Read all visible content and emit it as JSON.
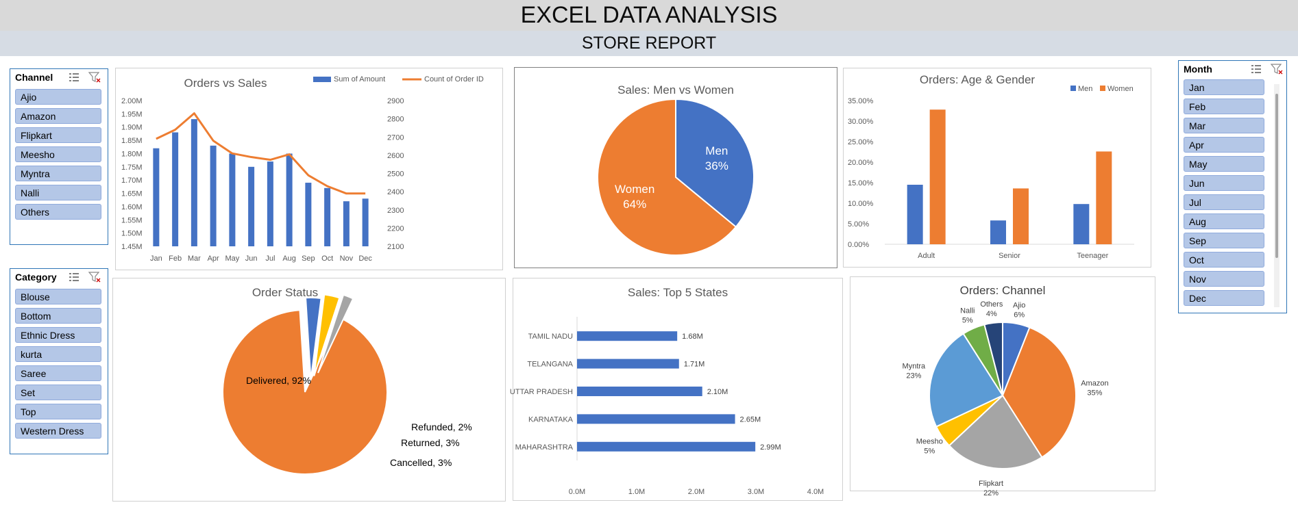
{
  "header": {
    "title": "EXCEL DATA ANALYSIS",
    "subtitle": "STORE REPORT"
  },
  "slicers": {
    "channel": {
      "title": "Channel",
      "items": [
        "Ajio",
        "Amazon",
        "Flipkart",
        "Meesho",
        "Myntra",
        "Nalli",
        "Others"
      ]
    },
    "category": {
      "title": "Category",
      "items": [
        "Blouse",
        "Bottom",
        "Ethnic Dress",
        "kurta",
        "Saree",
        "Set",
        "Top",
        "Western Dress"
      ]
    },
    "month": {
      "title": "Month",
      "items": [
        "Jan",
        "Feb",
        "Mar",
        "Apr",
        "May",
        "Jun",
        "Jul",
        "Aug",
        "Sep",
        "Oct",
        "Nov",
        "Dec"
      ]
    },
    "icons": [
      "multi-select-icon",
      "clear-filter-icon"
    ]
  },
  "colors": {
    "blue": "#4472c4",
    "orange": "#ed7d31",
    "gray": "#a5a5a5",
    "gold": "#ffc000",
    "lightblue": "#5b9bd5",
    "green": "#70ad47",
    "navy": "#264478"
  },
  "chart_data": [
    {
      "id": "orders-vs-sales",
      "type": "bar",
      "title": "Orders vs Sales",
      "categories": [
        "Jan",
        "Feb",
        "Mar",
        "Apr",
        "May",
        "Jun",
        "Jul",
        "Aug",
        "Sep",
        "Oct",
        "Nov",
        "Dec"
      ],
      "series": [
        {
          "name": "Sum of Amount",
          "type": "bar",
          "axis": "left",
          "values": [
            1.82,
            1.88,
            1.93,
            1.83,
            1.8,
            1.75,
            1.77,
            1.8,
            1.69,
            1.67,
            1.62,
            1.63
          ]
        },
        {
          "name": "Count of Order ID",
          "type": "line",
          "axis": "right",
          "values": [
            2690,
            2740,
            2830,
            2680,
            2610,
            2590,
            2575,
            2605,
            2490,
            2430,
            2390,
            2390
          ]
        }
      ],
      "ylim_left": [
        1.45,
        2.0
      ],
      "yticks_left": [
        "1.45M",
        "1.50M",
        "1.55M",
        "1.60M",
        "1.65M",
        "1.70M",
        "1.75M",
        "1.80M",
        "1.85M",
        "1.90M",
        "1.95M",
        "2.00M"
      ],
      "ylim_right": [
        2100,
        2900
      ],
      "yticks_right": [
        "2100",
        "2200",
        "2300",
        "2400",
        "2500",
        "2600",
        "2700",
        "2800",
        "2900"
      ],
      "legend": "top-right"
    },
    {
      "id": "sales-men-women",
      "type": "pie",
      "title": "Sales: Men vs Women",
      "slices": [
        {
          "label": "Men",
          "value": 36,
          "pct": "36%"
        },
        {
          "label": "Women",
          "value": 64,
          "pct": "64%"
        }
      ]
    },
    {
      "id": "age-gender",
      "type": "bar",
      "title": "Orders: Age & Gender",
      "categories": [
        "Adult",
        "Senior",
        "Teenager"
      ],
      "series": [
        {
          "name": "Men",
          "values": [
            14.5,
            5.8,
            9.8
          ]
        },
        {
          "name": "Women",
          "values": [
            32.8,
            13.6,
            22.6
          ]
        }
      ],
      "ylim": [
        0,
        35
      ],
      "yticks": [
        "0.00%",
        "5.00%",
        "10.00%",
        "15.00%",
        "20.00%",
        "25.00%",
        "30.00%",
        "35.00%"
      ],
      "legend": "top-right"
    },
    {
      "id": "order-status",
      "type": "pie",
      "title": "Order Status",
      "slices": [
        {
          "label": "Delivered, 92%",
          "value": 92
        },
        {
          "label": "Cancelled, 3%",
          "value": 3
        },
        {
          "label": "Returned, 3%",
          "value": 3
        },
        {
          "label": "Refunded, 2%",
          "value": 2
        }
      ]
    },
    {
      "id": "top-states",
      "type": "bar",
      "orientation": "horizontal",
      "title": "Sales: Top 5 States",
      "categories": [
        "TAMIL NADU",
        "TELANGANA",
        "UTTAR PRADESH",
        "KARNATAKA",
        "MAHARASHTRA"
      ],
      "values": [
        1.68,
        1.71,
        2.1,
        2.65,
        2.99
      ],
      "value_labels": [
        "1.68M",
        "1.71M",
        "2.10M",
        "2.65M",
        "2.99M"
      ],
      "xlim": [
        0,
        4
      ],
      "xticks": [
        "0.0M",
        "1.0M",
        "2.0M",
        "3.0M",
        "4.0M"
      ]
    },
    {
      "id": "orders-channel",
      "type": "pie",
      "title": "Orders: Channel",
      "slices": [
        {
          "name": "Ajio",
          "pct": "6%",
          "value": 6
        },
        {
          "name": "Amazon",
          "pct": "35%",
          "value": 35
        },
        {
          "name": "Flipkart",
          "pct": "22%",
          "value": 22
        },
        {
          "name": "Meesho",
          "pct": "5%",
          "value": 5
        },
        {
          "name": "Myntra",
          "pct": "23%",
          "value": 23
        },
        {
          "name": "Nalli",
          "pct": "5%",
          "value": 5
        },
        {
          "name": "Others",
          "pct": "4%",
          "value": 4
        }
      ]
    }
  ]
}
